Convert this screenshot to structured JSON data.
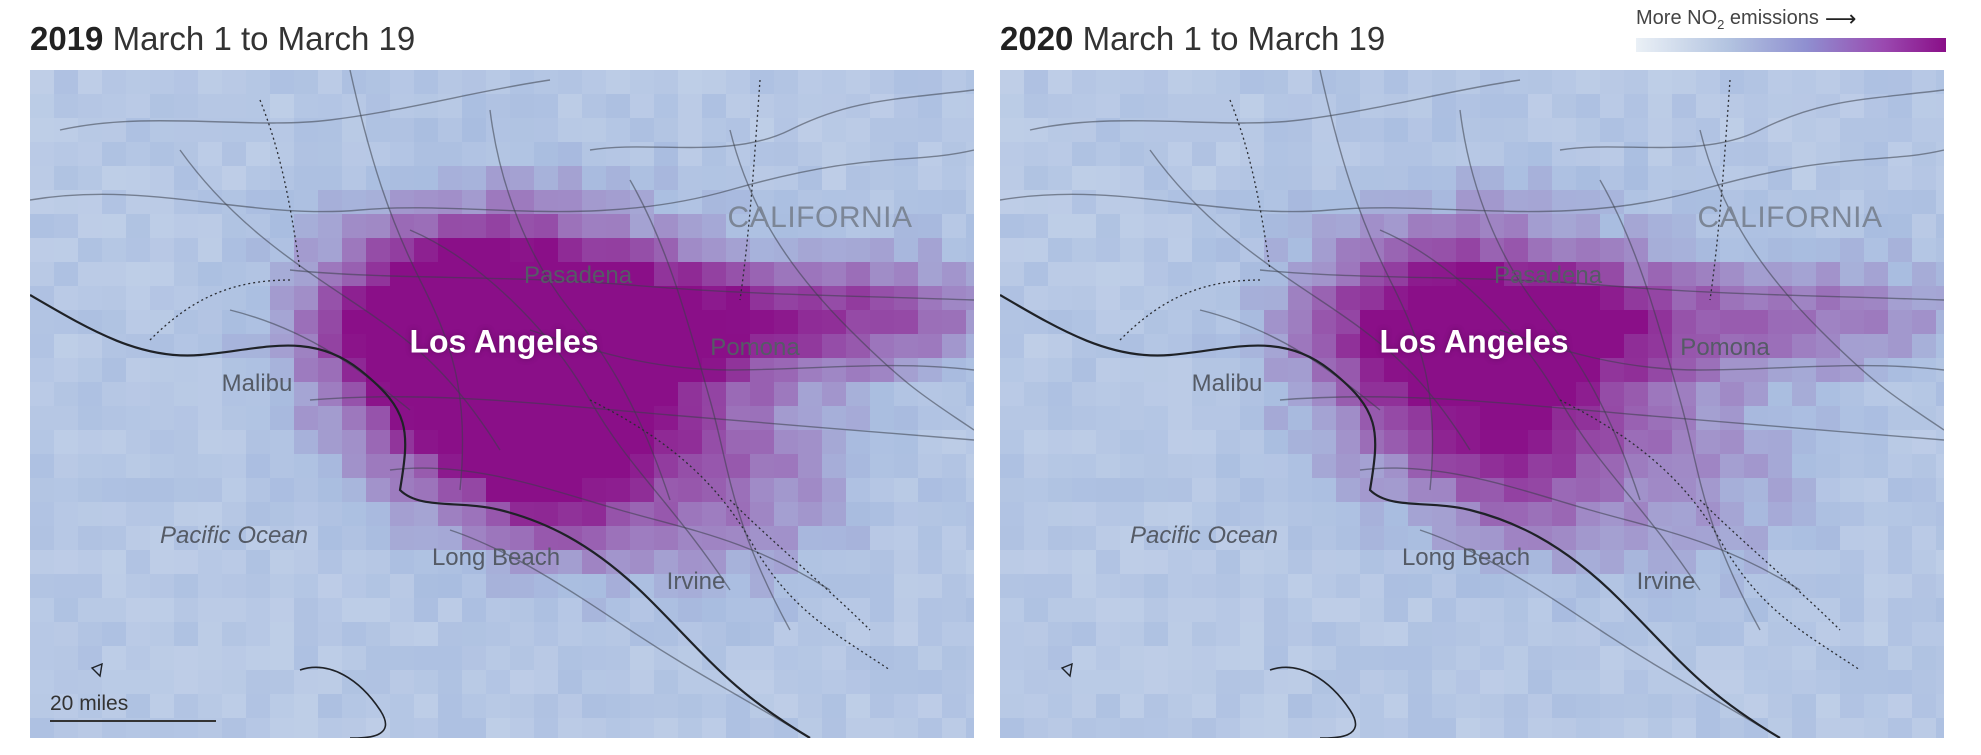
{
  "panels": [
    {
      "id": "2019",
      "year": "2019",
      "period": "March 1 to March 19",
      "intensity": 1.0,
      "show_scalebar": true
    },
    {
      "id": "2020",
      "year": "2020",
      "period": "March 1 to March 19",
      "intensity": 0.62,
      "show_scalebar": false
    }
  ],
  "labels": {
    "los_angeles": "Los Angeles",
    "pasadena": "Pasadena",
    "pomona": "Pomona",
    "malibu": "Malibu",
    "long_beach": "Long Beach",
    "irvine": "Irvine",
    "pacific_ocean": "Pacific Ocean",
    "california": "CALIFORNIA"
  },
  "scalebar": {
    "label": "20 miles"
  },
  "legend": {
    "prefix": "More NO",
    "subscript": "2",
    "suffix": "emissions",
    "arrow": "⟶"
  },
  "colors": {
    "low": "#eaf0f6",
    "mid": "#a9bde0",
    "high": "#8a0f88",
    "land_lines": "#3a3f4a",
    "coast": "#1f2227"
  }
}
